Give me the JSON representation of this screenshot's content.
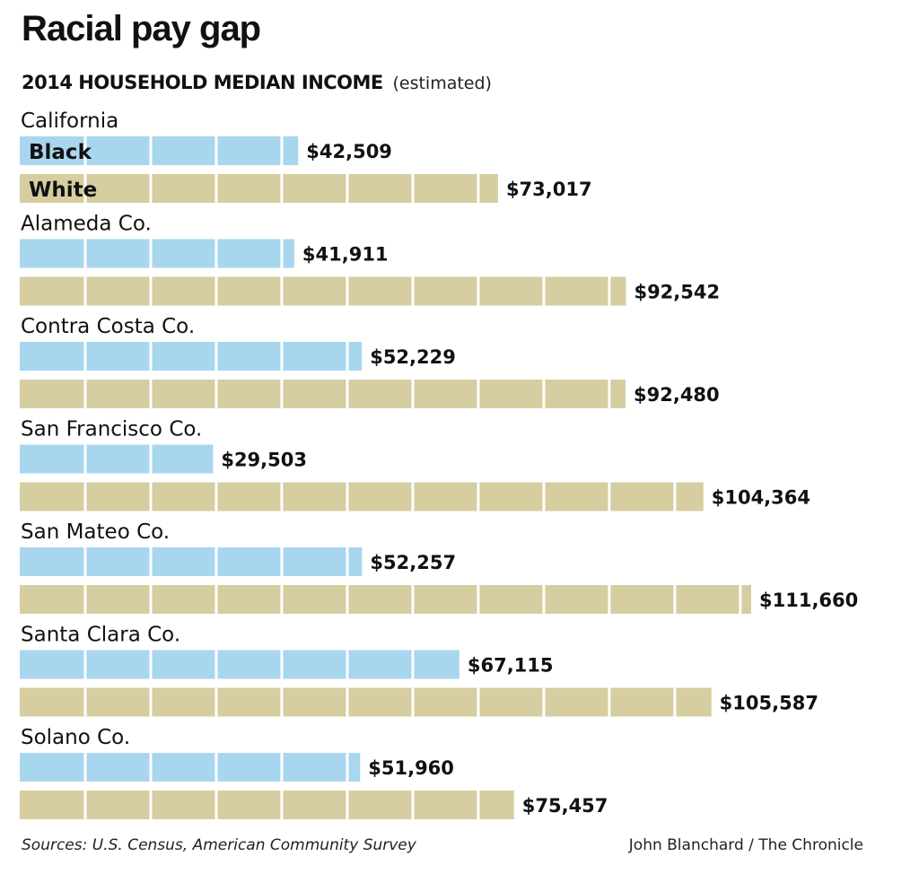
{
  "title": "Racial pay gap",
  "subtitle": "2014 HOUSEHOLD MEDIAN INCOME",
  "subtitle_note": "(estimated)",
  "source": "Sources: U.S. Census, American Community Survey",
  "credit": "John Blanchard / The Chronicle",
  "colors": {
    "black": "#a9d6ef",
    "white": "#d6cda0",
    "divider": "#ffffff"
  },
  "chart_data": {
    "type": "bar",
    "orientation": "horizontal",
    "title": "Racial pay gap",
    "subtitle": "2014 HOUSEHOLD MEDIAN INCOME (estimated)",
    "categories": [
      "California",
      "Alameda Co.",
      "Contra Costa Co.",
      "San Francisco Co.",
      "San Mateo Co.",
      "Santa Clara Co.",
      "Solano Co."
    ],
    "series": [
      {
        "name": "Black",
        "values": [
          42509,
          41911,
          52229,
          29503,
          52257,
          67115,
          51960
        ],
        "labels": [
          "$42,509",
          "$41,911",
          "$52,229",
          "$29,503",
          "$52,257",
          "$67,115",
          "$51,960"
        ]
      },
      {
        "name": "White",
        "values": [
          73017,
          92542,
          92480,
          104364,
          111660,
          105587,
          75457
        ],
        "labels": [
          "$73,017",
          "$92,542",
          "$92,480",
          "$104,364",
          "$111,660",
          "$105,587",
          "$75,457"
        ]
      }
    ],
    "segment_unit": 10000,
    "xlim": [
      0,
      111660
    ],
    "legend": "inline-first-group",
    "grid": false
  }
}
